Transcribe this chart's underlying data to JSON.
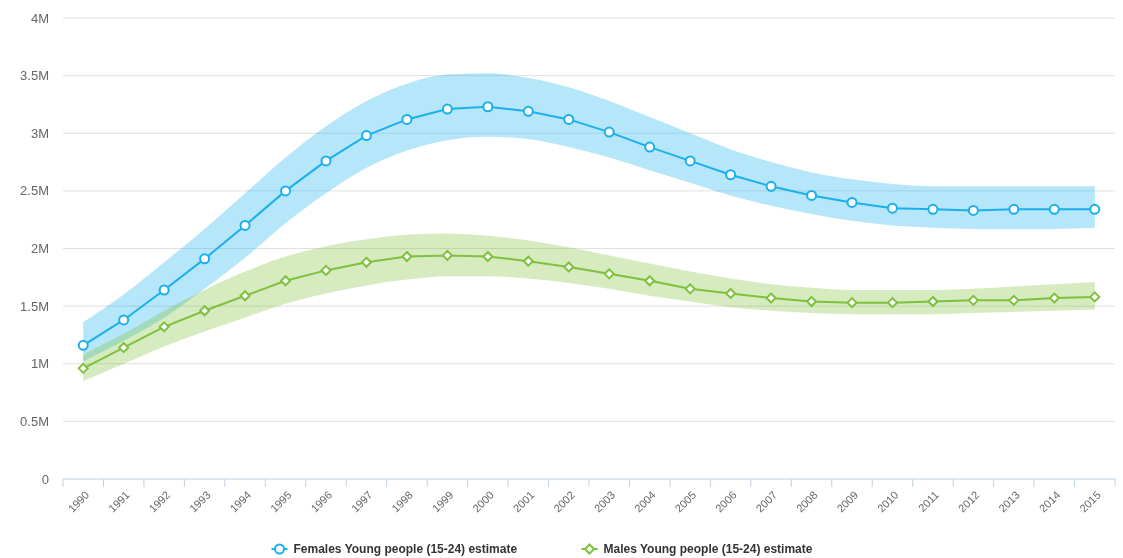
{
  "chart_data": {
    "type": "line",
    "categories": [
      "1990",
      "1991",
      "1992",
      "1993",
      "1994",
      "1995",
      "1996",
      "1997",
      "1998",
      "1999",
      "2000",
      "2001",
      "2002",
      "2003",
      "2004",
      "2005",
      "2006",
      "2007",
      "2008",
      "2009",
      "2010",
      "2011",
      "2012",
      "2013",
      "2014",
      "2015"
    ],
    "ylim": [
      0,
      4
    ],
    "yticks": [
      0,
      {
        "value": 0.5,
        "label": "0.5M"
      },
      {
        "value": 1,
        "label": "1M"
      },
      {
        "value": 1.5,
        "label": "1.5M"
      },
      {
        "value": 2,
        "label": "2M"
      },
      {
        "value": 2.5,
        "label": "2.5M"
      },
      {
        "value": 3,
        "label": "3M"
      },
      {
        "value": 3.5,
        "label": "3.5M"
      },
      {
        "value": 4,
        "label": "4M"
      }
    ],
    "grid": "y",
    "legend": "bottom",
    "line_style": "solid",
    "series": [
      {
        "name": "Females Young people (15-24) estimate",
        "color": "#1ab0ec",
        "marker": "circle",
        "values": [
          1.16,
          1.38,
          1.64,
          1.91,
          2.2,
          2.5,
          2.76,
          2.98,
          3.12,
          3.21,
          3.23,
          3.19,
          3.12,
          3.01,
          2.88,
          2.76,
          2.64,
          2.54,
          2.46,
          2.4,
          2.35,
          2.34,
          2.33,
          2.34,
          2.34,
          2.34
        ],
        "upper": [
          1.36,
          1.6,
          1.88,
          2.17,
          2.48,
          2.79,
          3.06,
          3.28,
          3.43,
          3.51,
          3.52,
          3.48,
          3.4,
          3.28,
          3.14,
          3.0,
          2.86,
          2.75,
          2.66,
          2.6,
          2.56,
          2.54,
          2.54,
          2.54,
          2.54,
          2.54
        ],
        "lower": [
          1.02,
          1.2,
          1.4,
          1.65,
          1.92,
          2.22,
          2.48,
          2.7,
          2.85,
          2.94,
          2.97,
          2.95,
          2.88,
          2.79,
          2.68,
          2.57,
          2.46,
          2.37,
          2.3,
          2.24,
          2.2,
          2.18,
          2.17,
          2.17,
          2.17,
          2.18
        ]
      },
      {
        "name": "Males Young people (15-24) estimate",
        "color": "#7ec13c",
        "marker": "diamond",
        "values": [
          0.96,
          1.14,
          1.32,
          1.46,
          1.59,
          1.72,
          1.81,
          1.88,
          1.93,
          1.94,
          1.93,
          1.89,
          1.84,
          1.78,
          1.72,
          1.65,
          1.61,
          1.57,
          1.54,
          1.53,
          1.53,
          1.54,
          1.55,
          1.55,
          1.57,
          1.58
        ],
        "upper": [
          1.08,
          1.26,
          1.46,
          1.64,
          1.8,
          1.93,
          2.02,
          2.08,
          2.12,
          2.13,
          2.11,
          2.07,
          2.01,
          1.94,
          1.87,
          1.8,
          1.74,
          1.69,
          1.66,
          1.64,
          1.64,
          1.64,
          1.65,
          1.67,
          1.69,
          1.71
        ],
        "lower": [
          0.85,
          1.0,
          1.15,
          1.28,
          1.4,
          1.52,
          1.61,
          1.68,
          1.73,
          1.76,
          1.76,
          1.74,
          1.7,
          1.65,
          1.59,
          1.54,
          1.49,
          1.46,
          1.44,
          1.43,
          1.43,
          1.43,
          1.44,
          1.45,
          1.46,
          1.47
        ]
      }
    ]
  }
}
